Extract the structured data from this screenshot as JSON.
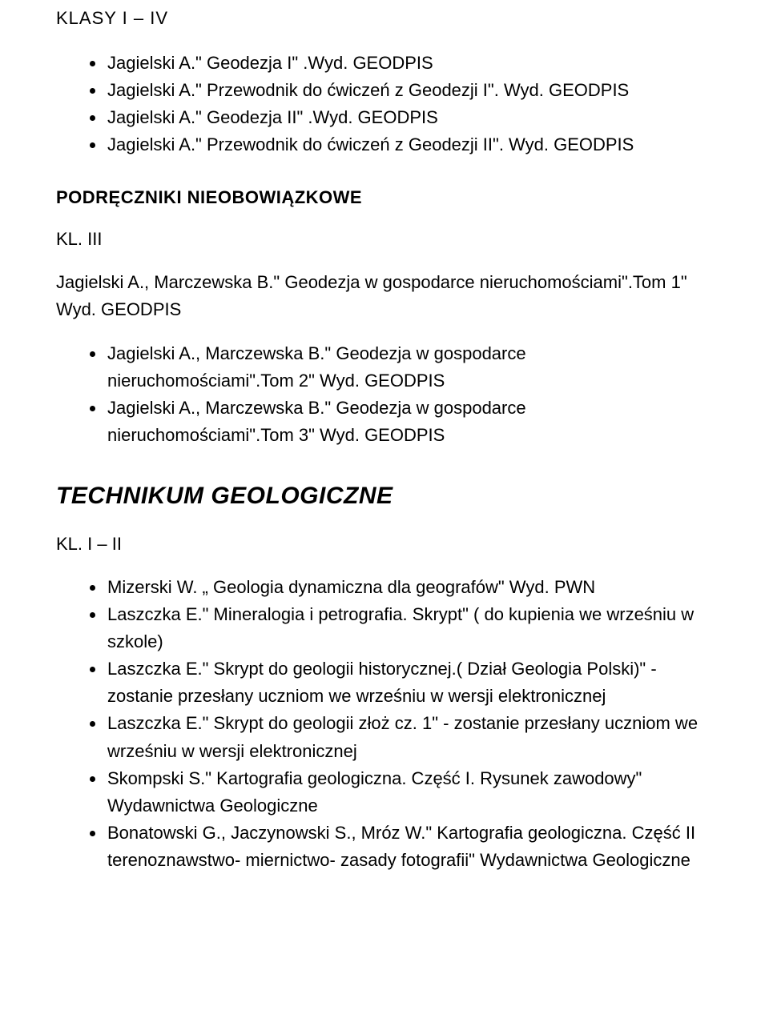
{
  "section1": {
    "title": "KLASY  I – IV",
    "items": [
      "Jagielski A.\" Geodezja I\" .Wyd. GEODPIS",
      "Jagielski A.\" Przewodnik do ćwiczeń z Geodezji I\". Wyd. GEODPIS",
      "Jagielski A.\" Geodezja II\" .Wyd. GEODPIS",
      "Jagielski A.\" Przewodnik do ćwiczeń z Geodezji II\". Wyd. GEODPIS"
    ]
  },
  "section2": {
    "title": "PODRĘCZNIKI NIEOBOWIĄZKOWE",
    "sub": "KL. III",
    "intro": "Jagielski A., Marczewska B.\" Geodezja w gospodarce nieruchomościami\".Tom 1\" Wyd. GEODPIS",
    "items": [
      "Jagielski A., Marczewska B.\" Geodezja w gospodarce nieruchomościami\".Tom 2\" Wyd. GEODPIS",
      "Jagielski A., Marczewska B.\" Geodezja w gospodarce nieruchomościami\".Tom 3\" Wyd. GEODPIS"
    ]
  },
  "section3": {
    "title": "TECHNIKUM GEOLOGICZNE",
    "sub": "KL.  I – II",
    "items": [
      "Mizerski W. „ Geologia dynamiczna dla geografów\" Wyd. PWN",
      "Laszczka E.\" Mineralogia i petrografia. Skrypt\" ( do kupienia we wrześniu w szkole)",
      "Laszczka E.\" Skrypt do geologii historycznej.( Dział Geologia Polski)\" -zostanie przesłany uczniom we wrześniu w wersji elektronicznej",
      "Laszczka E.\" Skrypt do geologii złoż cz. 1\" - zostanie przesłany uczniom we wrześniu w wersji elektronicznej",
      "Skompski S.\" Kartografia geologiczna. Część I. Rysunek zawodowy\" Wydawnictwa Geologiczne",
      "Bonatowski G., Jaczynowski S., Mróz W.\" Kartografia geologiczna. Część II terenoznawstwo- miernictwo- zasady fotografii\" Wydawnictwa Geologiczne"
    ]
  }
}
